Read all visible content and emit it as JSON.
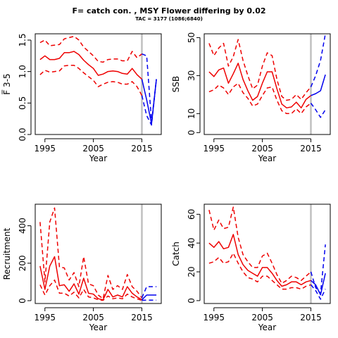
{
  "title": "F= catch con. , MSY Flower differing by 0.02",
  "subtitle": "TAC = 3177 (1086;6840)",
  "colors": {
    "history": "#ee0000",
    "forecast": "#0000ee",
    "ref_line": "#c0c0c0",
    "axis": "#000000"
  },
  "chart_data": [
    {
      "type": "line",
      "ylabel": "F̅ 3-5",
      "xlabel": "Year",
      "xlim": [
        1993,
        2019
      ],
      "ylim": [
        0,
        1.6
      ],
      "xticks": [
        1995,
        2005,
        2015
      ],
      "yticks": [
        0.0,
        0.5,
        1.0,
        1.5
      ],
      "vline": 2015,
      "grid": false,
      "series": [
        {
          "role": "history-median",
          "style": "solid",
          "color": "#ee0000",
          "x": [
            1994,
            1995,
            1996,
            1997,
            1998,
            1999,
            2000,
            2001,
            2002,
            2003,
            2004,
            2005,
            2006,
            2007,
            2008,
            2009,
            2010,
            2011,
            2012,
            2013,
            2014,
            2015
          ],
          "y": [
            1.19,
            1.25,
            1.19,
            1.19,
            1.21,
            1.3,
            1.3,
            1.32,
            1.27,
            1.18,
            1.11,
            1.05,
            0.94,
            0.96,
            1.0,
            1.01,
            1.0,
            0.97,
            0.96,
            1.05,
            0.95,
            0.88
          ]
        },
        {
          "role": "history-upper",
          "style": "dashed",
          "color": "#ee0000",
          "x": [
            1994,
            1995,
            1996,
            1997,
            1998,
            1999,
            2000,
            2001,
            2002,
            2003,
            2004,
            2005,
            2006,
            2007,
            2008,
            2009,
            2010,
            2011,
            2012,
            2013,
            2014,
            2015
          ],
          "y": [
            1.46,
            1.5,
            1.41,
            1.42,
            1.43,
            1.52,
            1.54,
            1.56,
            1.5,
            1.39,
            1.32,
            1.25,
            1.16,
            1.15,
            1.19,
            1.2,
            1.2,
            1.17,
            1.17,
            1.32,
            1.22,
            1.28
          ]
        },
        {
          "role": "history-lower",
          "style": "dashed",
          "color": "#ee0000",
          "x": [
            1994,
            1995,
            1996,
            1997,
            1998,
            1999,
            2000,
            2001,
            2002,
            2003,
            2004,
            2005,
            2006,
            2007,
            2008,
            2009,
            2010,
            2011,
            2012,
            2013,
            2014,
            2015
          ],
          "y": [
            0.95,
            1.02,
            0.99,
            1.0,
            1.01,
            1.09,
            1.1,
            1.1,
            1.05,
            0.98,
            0.92,
            0.86,
            0.76,
            0.8,
            0.83,
            0.84,
            0.83,
            0.8,
            0.8,
            0.84,
            0.76,
            0.62
          ]
        },
        {
          "role": "forecast-median",
          "style": "solid",
          "color": "#0000ee",
          "x": [
            2015,
            2016,
            2017,
            2018
          ],
          "y": [
            0.88,
            0.55,
            0.17,
            0.88
          ]
        },
        {
          "role": "forecast-upper",
          "style": "dashed",
          "color": "#0000ee",
          "x": [
            2015,
            2016,
            2017,
            2018
          ],
          "y": [
            1.28,
            1.25,
            0.2,
            0.88
          ]
        },
        {
          "role": "forecast-lower",
          "style": "dashed",
          "color": "#0000ee",
          "x": [
            2015,
            2016,
            2017,
            2018
          ],
          "y": [
            0.62,
            0.3,
            0.15,
            0.88
          ]
        }
      ]
    },
    {
      "type": "line",
      "ylabel": "SSB",
      "xlabel": "Year",
      "xlim": [
        1993,
        2019
      ],
      "ylim": [
        -1,
        52
      ],
      "xticks": [
        1995,
        2005,
        2015
      ],
      "yticks": [
        0,
        10,
        30,
        50
      ],
      "vline": 2015,
      "grid": false,
      "series": [
        {
          "role": "history-median",
          "style": "solid",
          "color": "#ee0000",
          "x": [
            1994,
            1995,
            1996,
            1997,
            1998,
            1999,
            2000,
            2001,
            2002,
            2003,
            2004,
            2005,
            2006,
            2007,
            2008,
            2009,
            2010,
            2011,
            2012,
            2013,
            2014,
            2015
          ],
          "y": [
            32,
            29.5,
            33,
            34,
            26,
            31,
            36.5,
            28,
            22,
            17,
            19,
            26,
            32,
            32,
            23,
            15,
            13,
            13.5,
            16,
            13,
            17.5,
            19.5
          ]
        },
        {
          "role": "history-upper",
          "style": "dashed",
          "color": "#ee0000",
          "x": [
            1994,
            1995,
            1996,
            1997,
            1998,
            1999,
            2000,
            2001,
            2002,
            2003,
            2004,
            2005,
            2006,
            2007,
            2008,
            2009,
            2010,
            2011,
            2012,
            2013,
            2014,
            2015
          ],
          "y": [
            47,
            40.5,
            44.5,
            47,
            35,
            40,
            49,
            38,
            30,
            23,
            25,
            35,
            42,
            40.5,
            28,
            19,
            17,
            17.5,
            20,
            17.5,
            21,
            24
          ]
        },
        {
          "role": "history-lower",
          "style": "dashed",
          "color": "#ee0000",
          "x": [
            1994,
            1995,
            1996,
            1997,
            1998,
            1999,
            2000,
            2001,
            2002,
            2003,
            2004,
            2005,
            2006,
            2007,
            2008,
            2009,
            2010,
            2011,
            2012,
            2013,
            2014,
            2015
          ],
          "y": [
            21.5,
            22.5,
            25,
            23.5,
            20,
            24,
            26,
            21,
            18,
            14,
            15,
            19.5,
            23.5,
            24,
            17,
            11.5,
            10,
            10,
            12.5,
            10,
            13.5,
            15.5
          ]
        },
        {
          "role": "forecast-median",
          "style": "solid",
          "color": "#0000ee",
          "x": [
            2015,
            2016,
            2017,
            2018
          ],
          "y": [
            19.5,
            20.5,
            22,
            30.5
          ]
        },
        {
          "role": "forecast-upper",
          "style": "dashed",
          "color": "#0000ee",
          "x": [
            2015,
            2016,
            2017,
            2018
          ],
          "y": [
            24,
            30,
            38,
            52
          ]
        },
        {
          "role": "forecast-lower",
          "style": "dashed",
          "color": "#0000ee",
          "x": [
            2015,
            2016,
            2017,
            2018
          ],
          "y": [
            15.5,
            12,
            8,
            12
          ]
        }
      ]
    },
    {
      "type": "line",
      "ylabel": "Recruitment",
      "xlabel": "Year",
      "xlim": [
        1993,
        2019
      ],
      "ylim": [
        -15,
        515
      ],
      "xticks": [
        1995,
        2005,
        2015
      ],
      "yticks": [
        0,
        200,
        400
      ],
      "vline": 2015,
      "grid": false,
      "series": [
        {
          "role": "history-median",
          "style": "solid",
          "color": "#ee0000",
          "x": [
            1994,
            1995,
            1996,
            1997,
            1998,
            1999,
            2000,
            2001,
            2002,
            2003,
            2004,
            2005,
            2006,
            2007,
            2008,
            2009,
            2010,
            2011,
            2012,
            2013,
            2014,
            2015
          ],
          "y": [
            185,
            60,
            185,
            235,
            80,
            85,
            50,
            90,
            35,
            120,
            40,
            35,
            10,
            5,
            60,
            20,
            30,
            20,
            75,
            40,
            20,
            5
          ]
        },
        {
          "role": "history-upper",
          "style": "dashed",
          "color": "#ee0000",
          "x": [
            1994,
            1995,
            1996,
            1997,
            1998,
            1999,
            2000,
            2001,
            2002,
            2003,
            2004,
            2005,
            2006,
            2007,
            2008,
            2009,
            2010,
            2011,
            2012,
            2013,
            2014,
            2015
          ],
          "y": [
            420,
            100,
            420,
            495,
            180,
            175,
            110,
            150,
            75,
            235,
            90,
            80,
            30,
            10,
            135,
            60,
            80,
            60,
            140,
            75,
            50,
            15
          ]
        },
        {
          "role": "history-lower",
          "style": "dashed",
          "color": "#ee0000",
          "x": [
            1994,
            1995,
            1996,
            1997,
            1998,
            1999,
            2000,
            2001,
            2002,
            2003,
            2004,
            2005,
            2006,
            2007,
            2008,
            2009,
            2010,
            2011,
            2012,
            2013,
            2014,
            2015
          ],
          "y": [
            85,
            30,
            80,
            110,
            40,
            40,
            25,
            45,
            15,
            60,
            20,
            15,
            5,
            2,
            25,
            10,
            15,
            10,
            35,
            20,
            10,
            2
          ]
        },
        {
          "role": "forecast-median",
          "style": "solid",
          "color": "#0000ee",
          "x": [
            2015,
            2016,
            2017,
            2018
          ],
          "y": [
            5,
            30,
            30,
            30
          ]
        },
        {
          "role": "forecast-upper",
          "style": "dashed",
          "color": "#0000ee",
          "x": [
            2015,
            2016,
            2017,
            2018
          ],
          "y": [
            15,
            75,
            75,
            75
          ]
        },
        {
          "role": "forecast-lower",
          "style": "dashed",
          "color": "#0000ee",
          "x": [
            2015,
            2016,
            2017,
            2018
          ],
          "y": [
            2,
            3,
            3,
            3
          ]
        }
      ]
    },
    {
      "type": "line",
      "ylabel": "Catch",
      "xlabel": "Year",
      "xlim": [
        1993,
        2019
      ],
      "ylim": [
        -2,
        67
      ],
      "xticks": [
        1995,
        2005,
        2015
      ],
      "yticks": [
        0,
        20,
        40,
        60
      ],
      "vline": 2015,
      "grid": false,
      "series": [
        {
          "role": "history-median",
          "style": "solid",
          "color": "#ee0000",
          "x": [
            1994,
            1995,
            1996,
            1997,
            1998,
            1999,
            2000,
            2001,
            2002,
            2003,
            2004,
            2005,
            2006,
            2007,
            2008,
            2009,
            2010,
            2011,
            2012,
            2013,
            2014,
            2015
          ],
          "y": [
            40,
            37,
            41,
            36,
            37,
            46,
            32,
            25,
            21,
            19,
            17,
            23,
            23,
            19,
            14,
            10,
            11,
            13,
            13,
            11,
            13,
            14
          ]
        },
        {
          "role": "history-upper",
          "style": "dashed",
          "color": "#ee0000",
          "x": [
            1994,
            1995,
            1996,
            1997,
            1998,
            1999,
            2000,
            2001,
            2002,
            2003,
            2004,
            2005,
            2006,
            2007,
            2008,
            2009,
            2010,
            2011,
            2012,
            2013,
            2014,
            2015
          ],
          "y": [
            63,
            49,
            56,
            50,
            51,
            65,
            44,
            32,
            27,
            23,
            23,
            31,
            33,
            26,
            18,
            12,
            14,
            17,
            16,
            14,
            17,
            20
          ]
        },
        {
          "role": "history-lower",
          "style": "dashed",
          "color": "#ee0000",
          "x": [
            1994,
            1995,
            1996,
            1997,
            1998,
            1999,
            2000,
            2001,
            2002,
            2003,
            2004,
            2005,
            2006,
            2007,
            2008,
            2009,
            2010,
            2011,
            2012,
            2013,
            2014,
            2015
          ],
          "y": [
            26,
            27,
            30,
            26,
            27,
            33,
            26,
            20,
            16,
            15,
            13,
            17,
            17,
            14,
            11,
            8,
            8,
            9,
            9,
            8,
            10,
            11
          ]
        },
        {
          "role": "forecast-median",
          "style": "solid",
          "color": "#0000ee",
          "x": [
            2015,
            2016,
            2017,
            2018
          ],
          "y": [
            14,
            11,
            4,
            19
          ]
        },
        {
          "role": "forecast-upper",
          "style": "dashed",
          "color": "#0000ee",
          "x": [
            2015,
            2016,
            2017,
            2018
          ],
          "y": [
            20,
            9,
            5,
            39
          ]
        },
        {
          "role": "forecast-lower",
          "style": "dashed",
          "color": "#0000ee",
          "x": [
            2015,
            2016,
            2017,
            2018
          ],
          "y": [
            11,
            7,
            1,
            8
          ]
        }
      ]
    }
  ]
}
